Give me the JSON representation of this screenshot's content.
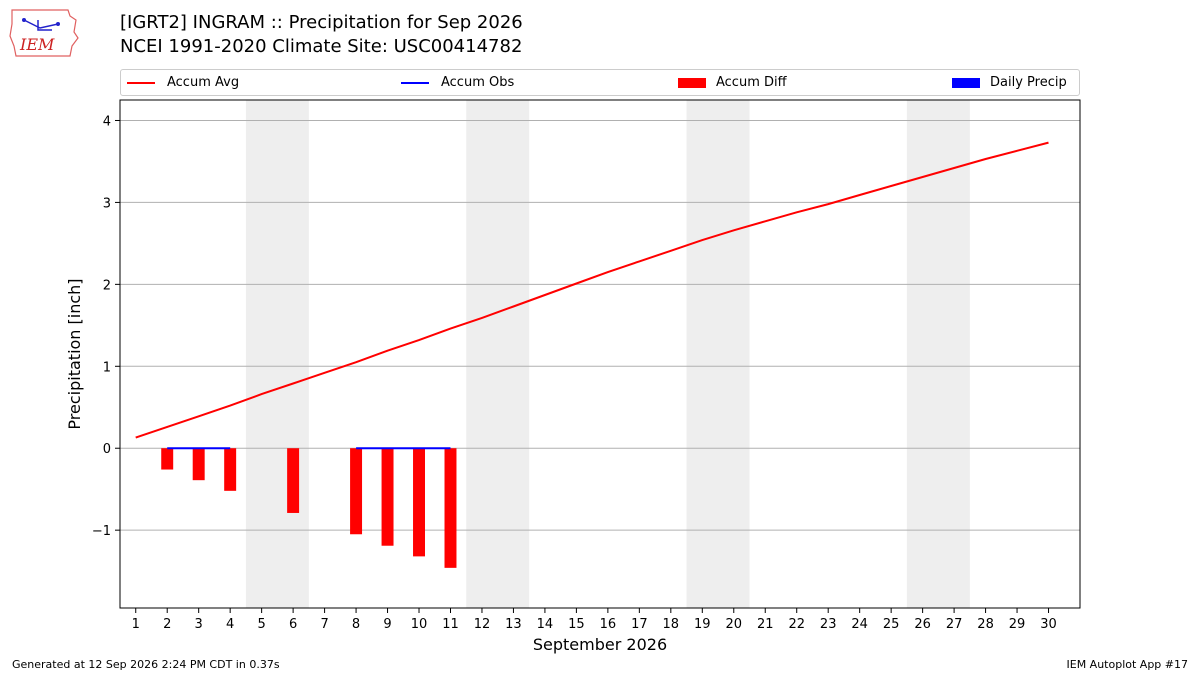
{
  "header": {
    "logo_text": "IEM",
    "title_line1": "[IGRT2] INGRAM :: Precipitation for Sep 2026",
    "title_line2": "NCEI 1991-2020 Climate Site: USC00414782"
  },
  "legend": [
    {
      "label": "Accum Avg",
      "color": "#ff0000",
      "kind": "line"
    },
    {
      "label": "Accum Obs",
      "color": "#0000ff",
      "kind": "line"
    },
    {
      "label": "Accum Diff",
      "color": "#ff0000",
      "kind": "box"
    },
    {
      "label": "Daily Precip",
      "color": "#0000ff",
      "kind": "box"
    }
  ],
  "footer": {
    "left": "Generated at 12 Sep 2026 2:24 PM CDT in 0.37s",
    "right": "IEM Autoplot App #17"
  },
  "chart_data": {
    "type": "bar",
    "xlabel": "September 2026",
    "ylabel": "Precipitation [inch]",
    "xlim": [
      0.5,
      31
    ],
    "ylim": [
      -1.95,
      4.25
    ],
    "x_ticks": [
      1,
      2,
      3,
      4,
      5,
      6,
      7,
      8,
      9,
      10,
      11,
      12,
      13,
      14,
      15,
      16,
      17,
      18,
      19,
      20,
      21,
      22,
      23,
      24,
      25,
      26,
      27,
      28,
      29,
      30
    ],
    "y_ticks": [
      -1,
      0,
      1,
      2,
      3,
      4
    ],
    "y_tick_labels": [
      "−1",
      "0",
      "1",
      "2",
      "3",
      "4"
    ],
    "grid": "horizontal",
    "weekend_shading": [
      [
        5,
        6
      ],
      [
        12,
        13
      ],
      [
        19,
        20
      ],
      [
        26,
        27
      ]
    ],
    "series": [
      {
        "name": "Accum Avg",
        "type": "line",
        "color": "#ff0000",
        "x": [
          1,
          2,
          3,
          4,
          5,
          6,
          7,
          8,
          9,
          10,
          11,
          12,
          13,
          14,
          15,
          16,
          17,
          18,
          19,
          20,
          21,
          22,
          23,
          24,
          25,
          26,
          27,
          28,
          29,
          30
        ],
        "values": [
          0.13,
          0.26,
          0.39,
          0.52,
          0.66,
          0.79,
          0.92,
          1.05,
          1.19,
          1.32,
          1.46,
          1.59,
          1.73,
          1.87,
          2.01,
          2.15,
          2.28,
          2.41,
          2.54,
          2.66,
          2.77,
          2.88,
          2.98,
          3.09,
          3.2,
          3.31,
          3.42,
          3.53,
          3.63,
          3.73
        ]
      },
      {
        "name": "Accum Obs",
        "type": "line",
        "color": "#0000ff",
        "x": [
          2,
          3,
          4,
          5,
          6,
          7,
          8,
          9,
          10,
          11
        ],
        "values": [
          0,
          0,
          0,
          null,
          null,
          null,
          0,
          0,
          0,
          0
        ]
      },
      {
        "name": "Accum Diff",
        "type": "bar",
        "color": "#ff0000",
        "x": [
          2,
          3,
          4,
          6,
          8,
          9,
          10,
          11
        ],
        "values": [
          -0.26,
          -0.39,
          -0.52,
          -0.79,
          -1.05,
          -1.19,
          -1.32,
          -1.46
        ]
      },
      {
        "name": "Daily Precip",
        "type": "bar",
        "color": "#0000ff",
        "x": [
          2,
          3,
          4,
          6,
          8,
          9,
          10,
          11
        ],
        "values": [
          0,
          0,
          0,
          0,
          0,
          0,
          0,
          0
        ]
      }
    ]
  }
}
